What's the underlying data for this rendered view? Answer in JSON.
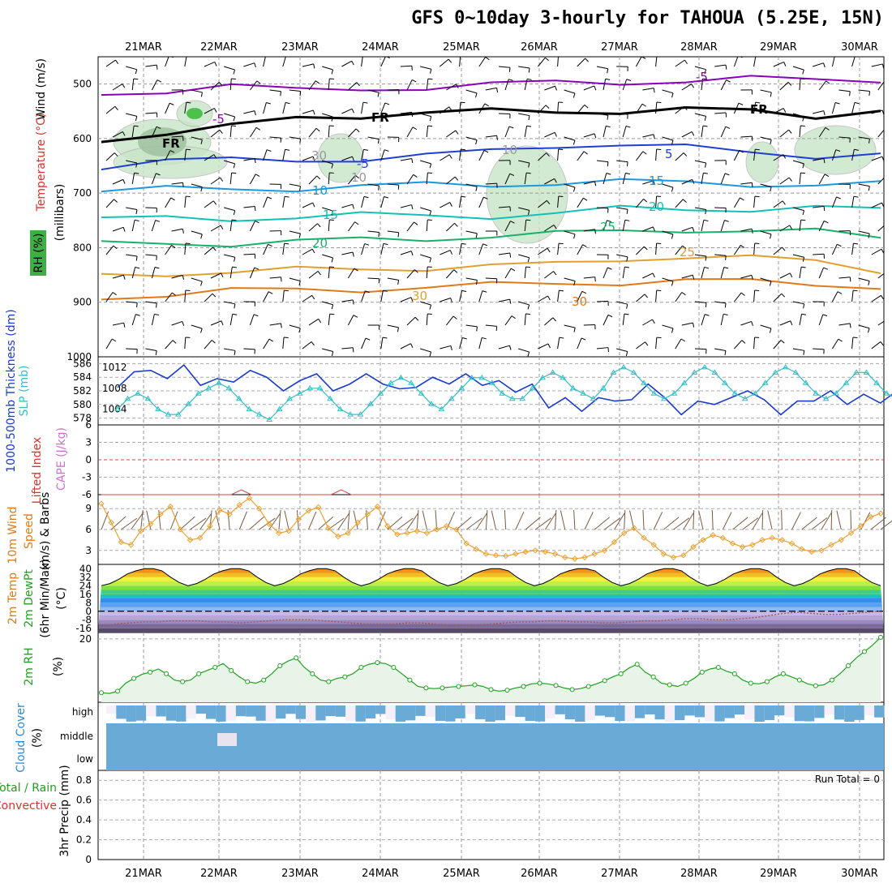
{
  "title": "GFS 0~10day 3-hourly for TAHOUA (5.25E, 15N)",
  "colors": {
    "temp_contours": [
      "#8a00b8",
      "#000000",
      "#1f3fd0",
      "#1a98e0",
      "#13c0b8",
      "#18b06a",
      "#e0a030",
      "#e07a18",
      "#e0302a",
      "#c0107a"
    ],
    "rh_fill": "#c8e6c8",
    "thickness": "#1a3ad0",
    "slp": "#30c0c8",
    "lifted_zero": "#e04040",
    "cape": "#d070d0",
    "wind_speed": "#f0a030",
    "barbs": "#7a5a40",
    "rh2m": "#20a020",
    "cloud": "#6aaad6",
    "precip": "#20a020"
  },
  "chart_data": [
    {
      "type": "line",
      "panel": "upper-air",
      "title": "GFS 0~10day 3-hourly for TAHOUA (5.25E, 15N)",
      "x_ticks": [
        "21MAR",
        "22MAR",
        "23MAR",
        "24MAR",
        "25MAR",
        "26MAR",
        "27MAR",
        "28MAR",
        "29MAR",
        "30MAR"
      ],
      "ylabel_parts": [
        "RH (%)",
        "Temperature (°C)",
        "Wind (m/s)"
      ],
      "ylabel_unit": "(millibars)",
      "y_ticks": [
        500,
        600,
        700,
        800,
        900,
        1000
      ],
      "ylim": [
        1000,
        450
      ],
      "contour_labels": [
        "-5",
        "-5",
        "FR",
        "FR",
        "FR",
        "-5",
        "5",
        "10",
        "10",
        "15",
        "15",
        "20",
        "20",
        "25",
        "25",
        "30",
        "30",
        "30",
        "10"
      ],
      "series": [
        {
          "name": "-5",
          "values": [
            520,
            510,
            502,
            514,
            508,
            505,
            502,
            498,
            495,
            494,
            492,
            492,
            490
          ]
        },
        {
          "name": "0",
          "values": [
            600,
            590,
            580,
            562,
            556,
            553,
            552,
            550,
            548,
            547,
            552,
            558,
            545
          ]
        },
        {
          "name": "5",
          "values": [
            650,
            642,
            640,
            637,
            638,
            634,
            622,
            610,
            612,
            618,
            624,
            630,
            630
          ]
        },
        {
          "name": "10",
          "values": [
            696,
            694,
            692,
            690,
            688,
            686,
            684,
            680,
            680,
            682,
            682,
            684,
            685
          ]
        },
        {
          "name": "15",
          "values": [
            750,
            746,
            745,
            744,
            742,
            741,
            740,
            738,
            730,
            728,
            728,
            728,
            732
          ]
        },
        {
          "name": "20",
          "values": [
            795,
            790,
            792,
            790,
            786,
            782,
            778,
            776,
            770,
            765,
            770,
            772,
            780
          ]
        },
        {
          "name": "25",
          "values": [
            850,
            845,
            846,
            842,
            838,
            836,
            834,
            832,
            820,
            815,
            820,
            826,
            840
          ]
        },
        {
          "name": "30",
          "values": [
            890,
            885,
            880,
            878,
            875,
            872,
            870,
            866,
            862,
            860,
            864,
            866,
            870
          ]
        }
      ]
    },
    {
      "type": "line",
      "panel": "thickness-slp",
      "ylabel_left": "1000-500mb Thickness (dm)",
      "ylabel_right": "SLP (mb)",
      "left_ticks": [
        578,
        580,
        582,
        584,
        586
      ],
      "right_ticks": [
        1004,
        1008,
        1012
      ],
      "ylim_left": [
        577,
        587
      ],
      "ylim_right": [
        1001,
        1014
      ],
      "series": [
        {
          "name": "Thickness",
          "values": [
            582.5,
            584.8,
            585,
            583.8,
            585.8,
            582.8,
            583.8,
            583.3,
            585,
            584,
            582,
            583.5,
            584.5,
            582,
            583,
            584.5,
            583,
            582.3,
            582.5,
            584,
            583,
            584.5,
            582.8,
            583.5,
            581.8,
            583,
            579.5,
            581,
            579,
            581,
            580.5,
            580.7,
            583,
            581,
            578.5,
            580.5,
            580,
            581,
            582,
            580.7,
            578.5,
            580.5,
            580.5,
            582,
            580,
            581.5,
            580.2,
            582
          ]
        },
        {
          "name": "SLP",
          "values": [
            1004,
            1006,
            1007,
            1006,
            1004,
            1003,
            1003,
            1005,
            1007,
            1008,
            1009,
            1008,
            1006,
            1004,
            1003,
            1002,
            1004,
            1006,
            1007,
            1008,
            1008,
            1006,
            1004,
            1003,
            1003,
            1005,
            1007,
            1009,
            1010,
            1009,
            1007,
            1005,
            1004,
            1006,
            1008,
            1010,
            1010,
            1009,
            1007,
            1006,
            1006,
            1008,
            1010,
            1011,
            1010,
            1008,
            1007,
            1006,
            1008,
            1011,
            1012,
            1011,
            1009,
            1007,
            1006,
            1007,
            1009,
            1011,
            1012,
            1011,
            1009,
            1007,
            1006,
            1007,
            1009,
            1011,
            1012,
            1011,
            1009,
            1007,
            1006,
            1007,
            1009,
            1011,
            1011,
            1009,
            1007,
            1006
          ]
        }
      ]
    },
    {
      "type": "line",
      "panel": "stability",
      "ylabel_left": "Lifted Index",
      "ylabel_right": "CAPE (J/kg)",
      "y_ticks": [
        "-6",
        "-3",
        "0",
        "3",
        "6"
      ],
      "ylim": [
        -6,
        6
      ],
      "series": [
        {
          "name": "Lifted Index",
          "values": [
            0
          ]
        },
        {
          "name": "CAPE",
          "values": [
            0,
            0,
            0,
            0,
            0,
            0,
            0,
            0,
            0,
            0,
            0,
            0,
            0,
            0,
            6,
            0,
            0,
            0,
            0,
            0,
            0,
            0,
            0,
            0,
            6,
            0,
            0,
            0,
            0,
            0,
            0,
            0,
            0,
            0,
            0,
            0,
            0,
            0,
            0,
            0,
            0,
            0,
            0,
            0,
            0,
            0,
            0,
            0,
            0,
            0,
            0,
            0,
            0,
            0,
            0,
            0,
            0,
            0,
            0,
            0,
            0,
            0,
            0,
            0,
            0,
            0,
            0,
            0,
            0,
            0,
            0,
            0,
            0,
            0,
            0,
            0,
            0,
            0,
            0
          ]
        }
      ]
    },
    {
      "type": "line",
      "panel": "10m-wind",
      "ylabel": "10m Wind Speed (m/s) & Barbs",
      "y_ticks": [
        3,
        6,
        9
      ],
      "ylim": [
        1,
        11
      ],
      "series": [
        {
          "name": "Speed",
          "values": [
            9.7,
            7,
            4.2,
            3.8,
            5.8,
            6.8,
            8.2,
            9.3,
            6,
            4.5,
            4.8,
            6.5,
            8.8,
            8.2,
            9.5,
            10.5,
            9,
            6.8,
            5.5,
            5.8,
            7.5,
            8.7,
            9.2,
            6.2,
            5,
            5.5,
            7,
            8.2,
            9.3,
            6.5,
            5.3,
            5.5,
            5.8,
            5.5,
            6,
            6.5,
            6,
            4,
            3.2,
            2.5,
            2.3,
            2.2,
            2.5,
            2.8,
            3,
            2.8,
            2.5,
            2,
            1.8,
            2,
            2.5,
            3,
            4.2,
            5.5,
            6.2,
            4.8,
            3.8,
            2.5,
            2,
            2.3,
            3.5,
            4.5,
            5.2,
            4.8,
            4,
            3.5,
            3.8,
            4.5,
            4.8,
            4.5,
            4,
            3.2,
            2.8,
            3,
            3.8,
            4.5,
            5.5,
            6.5,
            7.8,
            8.3
          ]
        }
      ]
    },
    {
      "type": "area",
      "panel": "2m-temp",
      "ylabel": "2m Temp 2m DewPt (6hr Min/Max) (°C)",
      "y_ticks": [
        40,
        32,
        24,
        16,
        8,
        0,
        -8,
        -16
      ],
      "ylim": [
        -20,
        44
      ],
      "series": [
        {
          "name": "2m Temp",
          "values": [
            24,
            26,
            30,
            35,
            38,
            40,
            40,
            38,
            32,
            27,
            24,
            26,
            30,
            35,
            38,
            40,
            40,
            38,
            32,
            27,
            24,
            26,
            30,
            35,
            38,
            40,
            40,
            38,
            32,
            27,
            24,
            26,
            30,
            35,
            38,
            40,
            40,
            38,
            32,
            27,
            24,
            26,
            30,
            35,
            38,
            40,
            40,
            38,
            32,
            27,
            24,
            26,
            30,
            35,
            38,
            40,
            40,
            38,
            32,
            27,
            24,
            26,
            30,
            35,
            38,
            40,
            40,
            38,
            32,
            27,
            24,
            26,
            30,
            35,
            38,
            40,
            40,
            38,
            32,
            27,
            24,
            26,
            30,
            35,
            38,
            40,
            40,
            38,
            32,
            27,
            24
          ]
        },
        {
          "name": "2m DewPt",
          "values": [
            -14,
            -12,
            -11,
            -10,
            -10,
            -9,
            -9,
            -9,
            -10,
            -10,
            -11,
            -10,
            -9,
            -8,
            -8,
            -8,
            -9,
            -10,
            -11,
            -12,
            -12,
            -12,
            -11,
            -11,
            -12,
            -13,
            -13,
            -13,
            -12,
            -11,
            -10,
            -10,
            -9,
            -9,
            -10,
            -10,
            -11,
            -11,
            -10,
            -9,
            -9,
            -8,
            -7,
            -7,
            -8,
            -8,
            -7,
            -6,
            -4,
            -2,
            -1,
            -2,
            -3,
            -3,
            -2,
            -1,
            0
          ]
        }
      ]
    },
    {
      "type": "area",
      "panel": "2m-rh",
      "ylabel": "2m RH (%)",
      "y_ticks": [
        20
      ],
      "ylim": [
        0,
        22
      ],
      "series": [
        {
          "name": "2m RH",
          "values": [
            3,
            2.8,
            3.5,
            6,
            7.5,
            8.8,
            9.5,
            10.5,
            9,
            7,
            6.5,
            7,
            9,
            10,
            11,
            12.2,
            10,
            8,
            6.5,
            6,
            7,
            9,
            11.5,
            13,
            14,
            11,
            9,
            7,
            6.5,
            7.5,
            8,
            9,
            11,
            12,
            12.5,
            12.2,
            11,
            9,
            7,
            5,
            4.5,
            4.3,
            4.5,
            4.8,
            5,
            5.2,
            5.5,
            5,
            4,
            3.5,
            3.8,
            4.5,
            5,
            5.8,
            6,
            5.8,
            5.3,
            4.5,
            4,
            4.3,
            5,
            5.8,
            6.8,
            8,
            9,
            10.8,
            12,
            9.5,
            8,
            6,
            5.5,
            5,
            6,
            7.5,
            9.5,
            10.5,
            11,
            9.8,
            9,
            7,
            6,
            5.8,
            6.5,
            8,
            9,
            8,
            7,
            5.8,
            5.2,
            5.5,
            7,
            9,
            11.5,
            14,
            16,
            18,
            20.5
          ]
        }
      ]
    },
    {
      "type": "area",
      "panel": "cloud-cover",
      "ylabel": "Cloud Cover (%)",
      "y_ticks": [
        "high",
        "middle",
        "low"
      ]
    },
    {
      "type": "bar",
      "panel": "precip",
      "ylabel": "3hr Precip (mm)",
      "ylabel_left": "Total / Rain",
      "ylabel_left2": "Convective",
      "y_ticks": [
        "0",
        "0.2",
        "0.4",
        "0.6",
        "0.8"
      ],
      "ylim": [
        0,
        0.9
      ],
      "annotation": "Run Total = 0",
      "values": []
    }
  ]
}
